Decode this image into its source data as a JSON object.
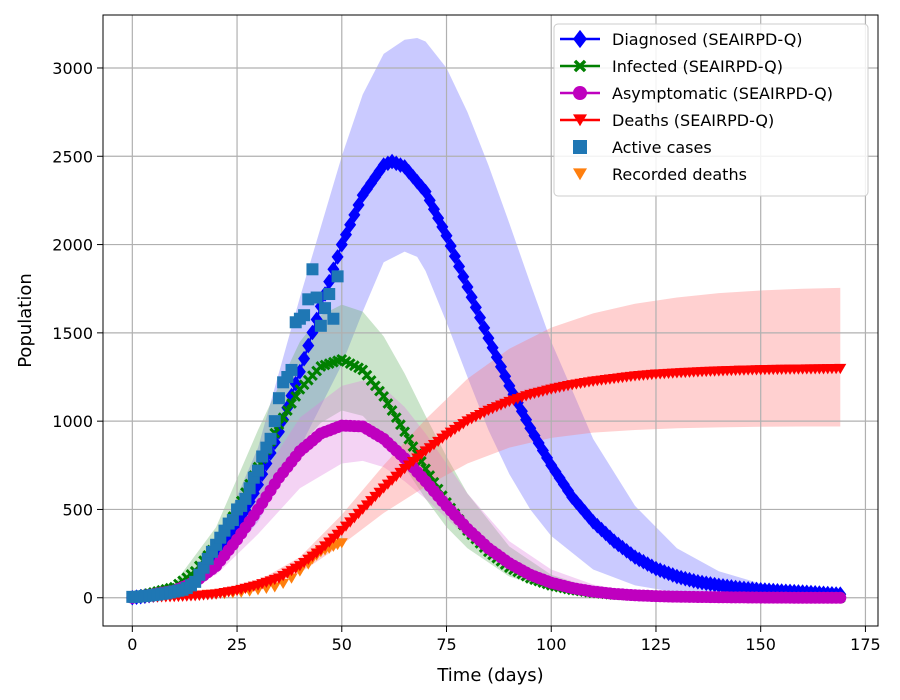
{
  "chart_data": {
    "type": "line",
    "title": "",
    "xlabel": "Time (days)",
    "ylabel": "Population",
    "xlim": [
      -7,
      178
    ],
    "ylim": [
      -160,
      3300
    ],
    "xticks": [
      0,
      25,
      50,
      75,
      100,
      125,
      150,
      175
    ],
    "yticks": [
      0,
      500,
      1000,
      1500,
      2000,
      2500,
      3000
    ],
    "grid": true,
    "legend_position": "top-right",
    "series": [
      {
        "name": "Diagnosed (SEAIRPD-Q)",
        "color": "#0000ff",
        "marker": "diamond",
        "x": [
          0,
          10,
          15,
          20,
          25,
          30,
          35,
          40,
          45,
          50,
          55,
          60,
          62,
          65,
          70,
          75,
          80,
          85,
          90,
          95,
          100,
          105,
          110,
          115,
          120,
          125,
          130,
          135,
          140,
          145,
          150,
          155,
          160,
          165,
          169
        ],
        "y": [
          0,
          30,
          100,
          220,
          400,
          640,
          940,
          1280,
          1650,
          2000,
          2280,
          2450,
          2470,
          2440,
          2300,
          2050,
          1760,
          1470,
          1200,
          960,
          750,
          570,
          430,
          320,
          230,
          165,
          120,
          90,
          70,
          55,
          45,
          38,
          32,
          25,
          20
        ]
      },
      {
        "name": "Infected (SEAIRPD-Q)",
        "color": "#008000",
        "marker": "x",
        "x": [
          0,
          10,
          15,
          20,
          25,
          30,
          35,
          40,
          45,
          50,
          55,
          60,
          65,
          70,
          75,
          80,
          85,
          90,
          95,
          100,
          105,
          110,
          115,
          120,
          125,
          130,
          135,
          140,
          150,
          160,
          169
        ],
        "y": [
          0,
          60,
          150,
          300,
          500,
          740,
          980,
          1180,
          1310,
          1350,
          1290,
          1140,
          940,
          730,
          540,
          380,
          260,
          170,
          110,
          70,
          45,
          28,
          18,
          12,
          8,
          5,
          3,
          2,
          1,
          0,
          0
        ]
      },
      {
        "name": "Asymptomatic (SEAIRPD-Q)",
        "color": "#bf00bf",
        "marker": "circle",
        "x": [
          0,
          10,
          15,
          20,
          25,
          30,
          35,
          40,
          45,
          50,
          55,
          60,
          65,
          70,
          75,
          80,
          85,
          90,
          95,
          100,
          105,
          110,
          115,
          120,
          125,
          130,
          140,
          150,
          160,
          169
        ],
        "y": [
          0,
          40,
          90,
          180,
          330,
          500,
          680,
          830,
          930,
          975,
          970,
          900,
          790,
          660,
          520,
          390,
          280,
          195,
          130,
          85,
          55,
          35,
          22,
          14,
          9,
          6,
          3,
          1,
          0,
          0
        ]
      },
      {
        "name": "Deaths (SEAIRPD-Q)",
        "color": "#ff0000",
        "marker": "triangle-down",
        "x": [
          0,
          10,
          15,
          20,
          25,
          30,
          35,
          40,
          45,
          50,
          55,
          60,
          65,
          70,
          75,
          80,
          85,
          90,
          95,
          100,
          105,
          110,
          115,
          120,
          125,
          130,
          135,
          140,
          145,
          150,
          155,
          160,
          165,
          169
        ],
        "y": [
          0,
          5,
          10,
          20,
          40,
          70,
          110,
          180,
          270,
          380,
          500,
          620,
          730,
          830,
          920,
          1000,
          1060,
          1110,
          1150,
          1180,
          1205,
          1225,
          1240,
          1255,
          1265,
          1272,
          1278,
          1283,
          1287,
          1290,
          1292,
          1294,
          1295,
          1297
        ]
      }
    ],
    "bands": [
      {
        "series": "Diagnosed (SEAIRPD-Q)",
        "color": "#6666ff",
        "x": [
          0,
          10,
          20,
          30,
          40,
          50,
          55,
          60,
          65,
          68,
          70,
          75,
          80,
          85,
          90,
          95,
          100,
          110,
          120,
          130,
          140,
          150,
          160,
          169
        ],
        "lower": [
          0,
          20,
          150,
          430,
          850,
          1320,
          1620,
          1900,
          1960,
          1930,
          1850,
          1560,
          1250,
          950,
          700,
          500,
          350,
          160,
          70,
          30,
          12,
          5,
          2,
          1
        ],
        "upper": [
          0,
          40,
          300,
          850,
          1700,
          2500,
          2850,
          3080,
          3160,
          3170,
          3150,
          3000,
          2750,
          2450,
          2120,
          1780,
          1450,
          900,
          520,
          280,
          150,
          80,
          40,
          20
        ]
      },
      {
        "series": "Infected (SEAIRPD-Q)",
        "color": "#66b266",
        "x": [
          0,
          10,
          20,
          30,
          40,
          45,
          50,
          55,
          60,
          65,
          70,
          75,
          80,
          90,
          100,
          110,
          120,
          130,
          150,
          169
        ],
        "lower": [
          0,
          40,
          200,
          530,
          860,
          990,
          1060,
          1030,
          910,
          740,
          560,
          400,
          280,
          120,
          45,
          15,
          5,
          2,
          0,
          0
        ],
        "upper": [
          0,
          80,
          400,
          950,
          1450,
          1600,
          1660,
          1620,
          1480,
          1270,
          1030,
          800,
          590,
          290,
          130,
          55,
          22,
          9,
          2,
          0
        ]
      },
      {
        "series": "Asymptomatic (SEAIRPD-Q)",
        "color": "#e080e0",
        "x": [
          0,
          10,
          20,
          30,
          40,
          50,
          55,
          60,
          65,
          70,
          75,
          80,
          90,
          100,
          110,
          120,
          130,
          150,
          169
        ],
        "lower": [
          0,
          30,
          130,
          360,
          620,
          760,
          775,
          740,
          660,
          560,
          450,
          340,
          170,
          75,
          30,
          12,
          5,
          1,
          0
        ],
        "upper": [
          0,
          55,
          240,
          650,
          1020,
          1200,
          1230,
          1190,
          1080,
          930,
          760,
          590,
          320,
          160,
          75,
          33,
          14,
          3,
          0
        ]
      },
      {
        "series": "Deaths (SEAIRPD-Q)",
        "color": "#ff7777",
        "x": [
          0,
          20,
          30,
          40,
          50,
          60,
          70,
          80,
          90,
          100,
          110,
          120,
          130,
          140,
          150,
          160,
          169
        ],
        "lower": [
          0,
          15,
          50,
          140,
          300,
          480,
          630,
          760,
          850,
          905,
          935,
          950,
          960,
          965,
          968,
          970,
          970
        ],
        "upper": [
          0,
          25,
          95,
          230,
          470,
          750,
          1010,
          1240,
          1410,
          1530,
          1610,
          1665,
          1700,
          1725,
          1740,
          1750,
          1755
        ]
      }
    ],
    "observations": [
      {
        "name": "Active cases",
        "color": "#1f77b4",
        "marker": "square",
        "x": [
          0,
          1,
          2,
          3,
          4,
          5,
          6,
          7,
          8,
          9,
          10,
          11,
          12,
          13,
          14,
          15,
          16,
          17,
          18,
          19,
          20,
          21,
          22,
          23,
          24,
          25,
          26,
          27,
          28,
          29,
          30,
          31,
          32,
          33,
          34,
          35,
          36,
          37,
          38,
          39,
          40,
          41,
          42,
          43,
          44,
          45,
          46,
          47,
          48,
          49
        ],
        "y": [
          5,
          5,
          8,
          10,
          12,
          15,
          18,
          22,
          25,
          30,
          35,
          40,
          45,
          55,
          70,
          90,
          130,
          170,
          220,
          260,
          300,
          340,
          380,
          420,
          440,
          500,
          520,
          560,
          620,
          680,
          720,
          800,
          850,
          900,
          1000,
          1130,
          1220,
          1250,
          1290,
          1560,
          1580,
          1600,
          1690,
          1860,
          1700,
          1540,
          1640,
          1720,
          1580,
          1820
        ]
      },
      {
        "name": "Recorded deaths",
        "color": "#ff7f0e",
        "marker": "triangle-down",
        "x": [
          0,
          2,
          4,
          6,
          8,
          10,
          12,
          14,
          16,
          18,
          20,
          22,
          24,
          26,
          28,
          30,
          32,
          34,
          36,
          38,
          40,
          42,
          43,
          44,
          45,
          46,
          47,
          48,
          49,
          50
        ],
        "y": [
          0,
          0,
          2,
          4,
          6,
          8,
          10,
          12,
          14,
          18,
          20,
          22,
          26,
          30,
          36,
          44,
          52,
          60,
          80,
          110,
          150,
          190,
          220,
          240,
          260,
          270,
          280,
          290,
          300,
          310
        ]
      }
    ]
  }
}
